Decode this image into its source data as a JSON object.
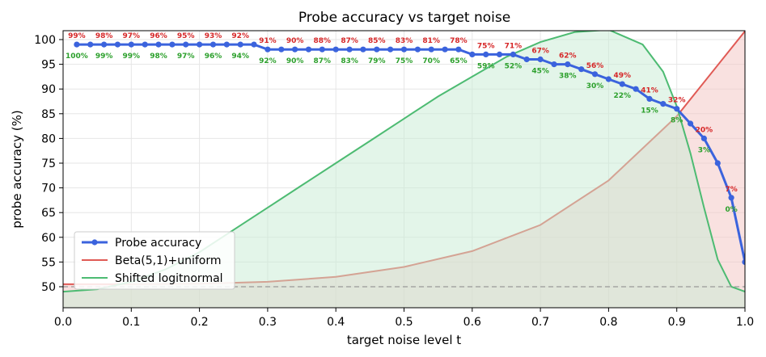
{
  "chart_data": {
    "type": "line",
    "title": "Probe accuracy vs target noise",
    "xlabel": "target noise level t",
    "ylabel": "probe accuracy (%)",
    "xlim": [
      0.0,
      1.0
    ],
    "ylim": [
      46,
      102
    ],
    "xticks": [
      0.0,
      0.1,
      0.2,
      0.3,
      0.4,
      0.5,
      0.6,
      0.7,
      0.8,
      0.9,
      1.0
    ],
    "xtick_labels": [
      "0.0",
      "0.1",
      "0.2",
      "0.3",
      "0.4",
      "0.5",
      "0.6",
      "0.7",
      "0.8",
      "0.9",
      "1.0"
    ],
    "yticks": [
      50,
      55,
      60,
      65,
      70,
      75,
      80,
      85,
      90,
      95,
      100
    ],
    "ytick_labels": [
      "50",
      "55",
      "60",
      "65",
      "70",
      "75",
      "80",
      "85",
      "90",
      "95",
      "100"
    ],
    "grid": true,
    "legend_position": "lower-left",
    "reference_line": {
      "y": 50,
      "style": "dashed",
      "color": "#999999"
    },
    "series": [
      {
        "name": "Probe accuracy",
        "kind": "line-markers",
        "color": "#3b63dd",
        "x": [
          0.02,
          0.04,
          0.06,
          0.08,
          0.1,
          0.12,
          0.14,
          0.16,
          0.18,
          0.2,
          0.22,
          0.24,
          0.26,
          0.28,
          0.3,
          0.32,
          0.34,
          0.36,
          0.38,
          0.4,
          0.42,
          0.44,
          0.46,
          0.48,
          0.5,
          0.52,
          0.54,
          0.56,
          0.58,
          0.6,
          0.62,
          0.64,
          0.66,
          0.68,
          0.7,
          0.72,
          0.74,
          0.76,
          0.78,
          0.8,
          0.82,
          0.84,
          0.86,
          0.88,
          0.9,
          0.92,
          0.94,
          0.96,
          0.98,
          1.0
        ],
        "y": [
          99,
          99,
          99,
          99,
          99,
          99,
          99,
          99,
          99,
          99,
          99,
          99,
          99,
          99,
          98,
          98,
          98,
          98,
          98,
          98,
          98,
          98,
          98,
          98,
          98,
          98,
          98,
          98,
          98,
          97,
          97,
          97,
          97,
          96,
          96,
          95,
          95,
          94,
          93,
          92,
          91,
          90,
          88,
          87,
          86,
          83,
          80,
          75,
          68,
          55
        ]
      },
      {
        "name": "Beta(5,1)+uniform",
        "kind": "density",
        "color": "#e05a55",
        "fill": "#f3c4c2",
        "x": [
          0.0,
          0.1,
          0.2,
          0.3,
          0.4,
          0.5,
          0.6,
          0.7,
          0.8,
          0.9,
          1.0
        ],
        "y": [
          50.5,
          50.5,
          50.6,
          51.0,
          52.0,
          54.0,
          57.2,
          62.5,
          71.5,
          84.5,
          101.7
        ]
      },
      {
        "name": "Shifted logitnormal",
        "kind": "density",
        "color": "#4dbb72",
        "fill": "#c8ecd4",
        "x": [
          0.0,
          0.05,
          0.1,
          0.15,
          0.2,
          0.25,
          0.3,
          0.35,
          0.4,
          0.45,
          0.5,
          0.55,
          0.6,
          0.65,
          0.7,
          0.75,
          0.8,
          0.85,
          0.88,
          0.9,
          0.92,
          0.94,
          0.96,
          0.98,
          1.0
        ],
        "y": [
          49.0,
          49.5,
          51.0,
          53.5,
          57.0,
          61.5,
          66.0,
          70.5,
          75.0,
          79.5,
          84.0,
          88.5,
          92.5,
          96.5,
          99.5,
          101.5,
          102.0,
          99.0,
          93.5,
          86.5,
          77.0,
          66.0,
          55.5,
          50.0,
          49.0
        ]
      }
    ],
    "annotations": {
      "red": {
        "color": "#d62728",
        "points": [
          {
            "x": 0.02,
            "text": "99%"
          },
          {
            "x": 0.06,
            "text": "98%"
          },
          {
            "x": 0.1,
            "text": "97%"
          },
          {
            "x": 0.14,
            "text": "96%"
          },
          {
            "x": 0.18,
            "text": "95%"
          },
          {
            "x": 0.22,
            "text": "93%"
          },
          {
            "x": 0.26,
            "text": "92%"
          },
          {
            "x": 0.3,
            "text": "91%"
          },
          {
            "x": 0.34,
            "text": "90%"
          },
          {
            "x": 0.38,
            "text": "88%"
          },
          {
            "x": 0.42,
            "text": "87%"
          },
          {
            "x": 0.46,
            "text": "85%"
          },
          {
            "x": 0.5,
            "text": "83%"
          },
          {
            "x": 0.54,
            "text": "81%"
          },
          {
            "x": 0.58,
            "text": "78%"
          },
          {
            "x": 0.62,
            "text": "75%"
          },
          {
            "x": 0.66,
            "text": "71%"
          },
          {
            "x": 0.7,
            "text": "67%"
          },
          {
            "x": 0.74,
            "text": "62%"
          },
          {
            "x": 0.78,
            "text": "56%"
          },
          {
            "x": 0.82,
            "text": "49%"
          },
          {
            "x": 0.86,
            "text": "41%"
          },
          {
            "x": 0.9,
            "text": "32%"
          },
          {
            "x": 0.94,
            "text": "20%"
          },
          {
            "x": 0.98,
            "text": "7%"
          }
        ]
      },
      "green": {
        "color": "#2ca02c",
        "points": [
          {
            "x": 0.02,
            "text": "100%"
          },
          {
            "x": 0.06,
            "text": "99%"
          },
          {
            "x": 0.1,
            "text": "99%"
          },
          {
            "x": 0.14,
            "text": "98%"
          },
          {
            "x": 0.18,
            "text": "97%"
          },
          {
            "x": 0.22,
            "text": "96%"
          },
          {
            "x": 0.26,
            "text": "94%"
          },
          {
            "x": 0.3,
            "text": "92%"
          },
          {
            "x": 0.34,
            "text": "90%"
          },
          {
            "x": 0.38,
            "text": "87%"
          },
          {
            "x": 0.42,
            "text": "83%"
          },
          {
            "x": 0.46,
            "text": "79%"
          },
          {
            "x": 0.5,
            "text": "75%"
          },
          {
            "x": 0.54,
            "text": "70%"
          },
          {
            "x": 0.58,
            "text": "65%"
          },
          {
            "x": 0.62,
            "text": "59%"
          },
          {
            "x": 0.66,
            "text": "52%"
          },
          {
            "x": 0.7,
            "text": "45%"
          },
          {
            "x": 0.74,
            "text": "38%"
          },
          {
            "x": 0.78,
            "text": "30%"
          },
          {
            "x": 0.82,
            "text": "22%"
          },
          {
            "x": 0.86,
            "text": "15%"
          },
          {
            "x": 0.9,
            "text": "8%"
          },
          {
            "x": 0.94,
            "text": "3%"
          },
          {
            "x": 0.98,
            "text": "0%"
          }
        ]
      }
    },
    "legend": [
      {
        "label": "Probe accuracy",
        "color": "#3b63dd",
        "marker": true
      },
      {
        "label": "Beta(5,1)+uniform",
        "color": "#e05a55",
        "marker": false
      },
      {
        "label": "Shifted logitnormal",
        "color": "#4dbb72",
        "marker": false
      }
    ]
  }
}
